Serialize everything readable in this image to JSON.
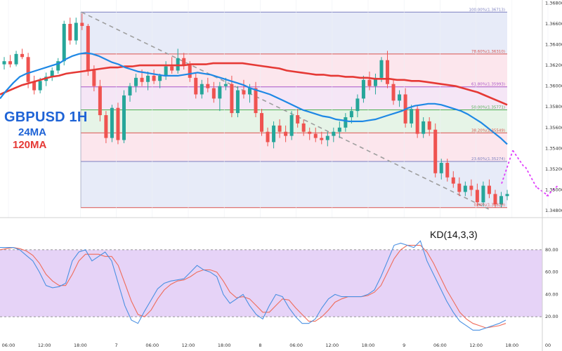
{
  "chart_data": {
    "type": "candlestick",
    "symbol": "GBPUSD 1H",
    "indicators": [
      "24MA",
      "120MA"
    ],
    "oscillator_title": "KD(14,3,3)",
    "price_ylim": [
      1.348,
      1.3683
    ],
    "price_yticks": [
      "1.36800",
      "1.36600",
      "1.36400",
      "1.36200",
      "1.36000",
      "1.35800",
      "1.35600",
      "1.35400",
      "1.35200",
      "1.35000",
      "1.34800"
    ],
    "kd_ylim": [
      0,
      100
    ],
    "kd_yticks": [
      "80.00",
      "60.00",
      "40.00",
      "20.00"
    ],
    "kd_levels": [
      80,
      20
    ],
    "x_tick_labels": [
      "06:00",
      "12:00",
      "18:00",
      "7",
      "06:00",
      "12:00",
      "18:00",
      "8",
      "06:00",
      "12:00",
      "18:00",
      "9",
      "06:00",
      "12:00",
      "18:00",
      "00",
      "12"
    ],
    "fib_levels": [
      {
        "label": "100.00%(1.36713)",
        "value": 1.36713,
        "color": "#7b7fbf"
      },
      {
        "label": "78.60%(1.36310)",
        "value": 1.3631,
        "color": "#d9534f"
      },
      {
        "label": "61.80%(1.35993)",
        "value": 1.35993,
        "color": "#a855c8"
      },
      {
        "label": "50.00%(1.35771)",
        "value": 1.35771,
        "color": "#4caf50"
      },
      {
        "label": "38.20%(1.35549)",
        "value": 1.35549,
        "color": "#d9534f"
      },
      {
        "label": "23.60%(1.35274)",
        "value": 1.35274,
        "color": "#7b7fbf"
      },
      {
        "label": "0.00%(1.34829)",
        "value": 1.34829,
        "color": "#d9534f"
      }
    ],
    "candles": [
      [
        1.3621,
        1.3628,
        1.3616,
        1.3624
      ],
      [
        1.3624,
        1.363,
        1.3618,
        1.3621
      ],
      [
        1.3621,
        1.3634,
        1.3619,
        1.3631
      ],
      [
        1.3631,
        1.3636,
        1.3626,
        1.3628
      ],
      [
        1.3628,
        1.3632,
        1.3598,
        1.3604
      ],
      [
        1.3604,
        1.361,
        1.3592,
        1.3596
      ],
      [
        1.3596,
        1.3608,
        1.3593,
        1.3605
      ],
      [
        1.3605,
        1.3613,
        1.36,
        1.3609
      ],
      [
        1.3609,
        1.3618,
        1.3605,
        1.3615
      ],
      [
        1.3615,
        1.3627,
        1.3612,
        1.3624
      ],
      [
        1.3624,
        1.3663,
        1.362,
        1.366
      ],
      [
        1.366,
        1.3666,
        1.364,
        1.3644
      ],
      [
        1.3644,
        1.3666,
        1.364,
        1.3661
      ],
      [
        1.3661,
        1.367,
        1.3654,
        1.3658
      ],
      [
        1.3658,
        1.366,
        1.361,
        1.3615
      ],
      [
        1.3615,
        1.362,
        1.3595,
        1.36
      ],
      [
        1.36,
        1.3606,
        1.3566,
        1.3572
      ],
      [
        1.3572,
        1.3576,
        1.3545,
        1.355
      ],
      [
        1.355,
        1.3582,
        1.3546,
        1.3579
      ],
      [
        1.3579,
        1.3584,
        1.3544,
        1.3548
      ],
      [
        1.3548,
        1.3596,
        1.3545,
        1.3591
      ],
      [
        1.3591,
        1.3603,
        1.3585,
        1.36
      ],
      [
        1.36,
        1.3612,
        1.3594,
        1.3608
      ],
      [
        1.3608,
        1.3616,
        1.36,
        1.3604
      ],
      [
        1.3604,
        1.3614,
        1.3596,
        1.361
      ],
      [
        1.361,
        1.3616,
        1.3602,
        1.3605
      ],
      [
        1.3605,
        1.3612,
        1.3598,
        1.361
      ],
      [
        1.361,
        1.3624,
        1.3606,
        1.3619
      ],
      [
        1.3619,
        1.3628,
        1.3612,
        1.3615
      ],
      [
        1.3615,
        1.3636,
        1.3612,
        1.3627
      ],
      [
        1.3627,
        1.3632,
        1.3616,
        1.362
      ],
      [
        1.362,
        1.3624,
        1.3604,
        1.3608
      ],
      [
        1.3608,
        1.3612,
        1.3588,
        1.3592
      ],
      [
        1.3592,
        1.3606,
        1.3588,
        1.3602
      ],
      [
        1.3602,
        1.3608,
        1.3594,
        1.3598
      ],
      [
        1.3598,
        1.3604,
        1.3584,
        1.3588
      ],
      [
        1.3588,
        1.3604,
        1.3576,
        1.36
      ],
      [
        1.36,
        1.3608,
        1.3596,
        1.3602
      ],
      [
        1.3602,
        1.361,
        1.357,
        1.3574
      ],
      [
        1.3574,
        1.36,
        1.357,
        1.3596
      ],
      [
        1.3596,
        1.3606,
        1.3588,
        1.3592
      ],
      [
        1.3592,
        1.3602,
        1.3584,
        1.3598
      ],
      [
        1.3598,
        1.3604,
        1.357,
        1.3574
      ],
      [
        1.3574,
        1.3578,
        1.3552,
        1.3556
      ],
      [
        1.3556,
        1.356,
        1.3542,
        1.3546
      ],
      [
        1.3546,
        1.3566,
        1.354,
        1.3562
      ],
      [
        1.3562,
        1.3568,
        1.355,
        1.3556
      ],
      [
        1.3556,
        1.3562,
        1.3546,
        1.3552
      ],
      [
        1.3552,
        1.3576,
        1.3548,
        1.3572
      ],
      [
        1.3572,
        1.3578,
        1.356,
        1.3564
      ],
      [
        1.3564,
        1.3568,
        1.3552,
        1.3556
      ],
      [
        1.3556,
        1.356,
        1.3548,
        1.3554
      ],
      [
        1.3554,
        1.356,
        1.3546,
        1.355
      ],
      [
        1.355,
        1.3556,
        1.3544,
        1.3548
      ],
      [
        1.3548,
        1.3556,
        1.3542,
        1.3552
      ],
      [
        1.3552,
        1.356,
        1.3546,
        1.3556
      ],
      [
        1.3556,
        1.3566,
        1.355,
        1.356
      ],
      [
        1.356,
        1.3574,
        1.3556,
        1.357
      ],
      [
        1.357,
        1.358,
        1.3564,
        1.3576
      ],
      [
        1.3576,
        1.3592,
        1.357,
        1.3588
      ],
      [
        1.3588,
        1.361,
        1.3584,
        1.3606
      ],
      [
        1.3606,
        1.3614,
        1.3596,
        1.36
      ],
      [
        1.36,
        1.3612,
        1.3592,
        1.3608
      ],
      [
        1.3608,
        1.3628,
        1.3604,
        1.3625
      ],
      [
        1.3625,
        1.3634,
        1.3598,
        1.3602
      ],
      [
        1.3602,
        1.3606,
        1.3582,
        1.3586
      ],
      [
        1.3586,
        1.3596,
        1.358,
        1.3592
      ],
      [
        1.3592,
        1.3598,
        1.356,
        1.3564
      ],
      [
        1.3564,
        1.3582,
        1.356,
        1.3578
      ],
      [
        1.3578,
        1.3582,
        1.355,
        1.3554
      ],
      [
        1.3554,
        1.357,
        1.355,
        1.3566
      ],
      [
        1.3566,
        1.357,
        1.3552,
        1.3558
      ],
      [
        1.3558,
        1.3564,
        1.3512,
        1.3516
      ],
      [
        1.3516,
        1.353,
        1.351,
        1.3526
      ],
      [
        1.3526,
        1.353,
        1.3508,
        1.3512
      ],
      [
        1.3512,
        1.3518,
        1.3502,
        1.3506
      ],
      [
        1.3506,
        1.3512,
        1.3494,
        1.3498
      ],
      [
        1.3498,
        1.3508,
        1.3494,
        1.3504
      ],
      [
        1.3504,
        1.351,
        1.3494,
        1.35
      ],
      [
        1.35,
        1.3506,
        1.3484,
        1.3488
      ],
      [
        1.3488,
        1.3508,
        1.3484,
        1.3504
      ],
      [
        1.3504,
        1.351,
        1.3492,
        1.3496
      ],
      [
        1.3496,
        1.35,
        1.3483,
        1.3486
      ],
      [
        1.3486,
        1.3498,
        1.3483,
        1.3494
      ],
      [
        1.3494,
        1.35,
        1.349,
        1.3496
      ]
    ],
    "ma24": [
      1.3588,
      1.3596,
      1.3603,
      1.3609,
      1.3612,
      1.3614,
      1.3616,
      1.3618,
      1.362,
      1.3622,
      1.3626,
      1.3629,
      1.3631,
      1.3632,
      1.3631,
      1.3629,
      1.3626,
      1.3623,
      1.3621,
      1.3618,
      1.3616,
      1.3614,
      1.3613,
      1.3612,
      1.3611,
      1.361,
      1.361,
      1.361,
      1.3611,
      1.3612,
      1.3613,
      1.3612,
      1.3611,
      1.3609,
      1.3607,
      1.3605,
      1.3603,
      1.3601,
      1.3598,
      1.3596,
      1.3594,
      1.3592,
      1.3589,
      1.3586,
      1.3583,
      1.358,
      1.3577,
      1.3575,
      1.3573,
      1.3571,
      1.357,
      1.3568,
      1.3567,
      1.3566,
      1.3566,
      1.3566,
      1.3567,
      1.3568,
      1.357,
      1.3572,
      1.3574,
      1.3576,
      1.3579,
      1.3581,
      1.3582,
      1.3583,
      1.3583,
      1.3582,
      1.358,
      1.3578,
      1.3576,
      1.3573,
      1.3569,
      1.3565,
      1.356,
      1.3555,
      1.355,
      1.3544
    ],
    "ma120": [
      1.3592,
      1.3595,
      1.3598,
      1.3601,
      1.3603,
      1.3605,
      1.3607,
      1.3609,
      1.361,
      1.3612,
      1.3613,
      1.3614,
      1.3615,
      1.3616,
      1.3617,
      1.3618,
      1.3618,
      1.3619,
      1.3619,
      1.362,
      1.362,
      1.362,
      1.362,
      1.362,
      1.362,
      1.362,
      1.3621,
      1.3621,
      1.3621,
      1.3622,
      1.3622,
      1.3622,
      1.3622,
      1.3622,
      1.3621,
      1.362,
      1.3619,
      1.3618,
      1.3617,
      1.3615,
      1.3614,
      1.3613,
      1.3612,
      1.3611,
      1.3611,
      1.361,
      1.361,
      1.3609,
      1.3609,
      1.3608,
      1.3608,
      1.3607,
      1.3607,
      1.3607,
      1.3606,
      1.3606,
      1.3605,
      1.3605,
      1.3604,
      1.3603,
      1.3602,
      1.3601,
      1.36,
      1.3598,
      1.3596,
      1.3594,
      1.3591,
      1.3588,
      1.3585,
      1.3582
    ],
    "k_line": [
      82,
      82,
      82,
      80,
      75,
      70,
      60,
      48,
      46,
      47,
      50,
      70,
      78,
      80,
      70,
      74,
      78,
      70,
      50,
      30,
      17,
      14,
      25,
      35,
      45,
      50,
      52,
      53,
      54,
      60,
      66,
      62,
      60,
      56,
      40,
      32,
      36,
      40,
      30,
      22,
      18,
      30,
      40,
      38,
      28,
      20,
      14,
      14,
      18,
      28,
      36,
      40,
      38,
      38,
      38,
      38,
      40,
      44,
      56,
      70,
      84,
      86,
      84,
      82,
      88,
      70,
      58,
      46,
      34,
      24,
      16,
      12,
      8,
      8,
      10,
      12,
      14,
      17
    ],
    "d_line": [
      80,
      81,
      82,
      81,
      79,
      75,
      68,
      58,
      52,
      48,
      48,
      58,
      70,
      76,
      76,
      76,
      74,
      74,
      66,
      50,
      34,
      22,
      20,
      26,
      36,
      44,
      49,
      52,
      53,
      56,
      60,
      62,
      62,
      60,
      52,
      42,
      37,
      38,
      36,
      30,
      24,
      24,
      30,
      36,
      35,
      28,
      22,
      16,
      16,
      20,
      26,
      33,
      36,
      38,
      38,
      38,
      39,
      42,
      48,
      60,
      72,
      80,
      84,
      84,
      84,
      78,
      68,
      56,
      44,
      34,
      24,
      18,
      14,
      12,
      10,
      11,
      12,
      14
    ],
    "projection": [
      [
        1.3506,
        1.3538
      ],
      [
        1.3538,
        1.3522
      ],
      [
        1.3522,
        1.3502
      ],
      [
        1.3502,
        1.3494
      ],
      [
        1.3494,
        1.3504
      ]
    ]
  }
}
